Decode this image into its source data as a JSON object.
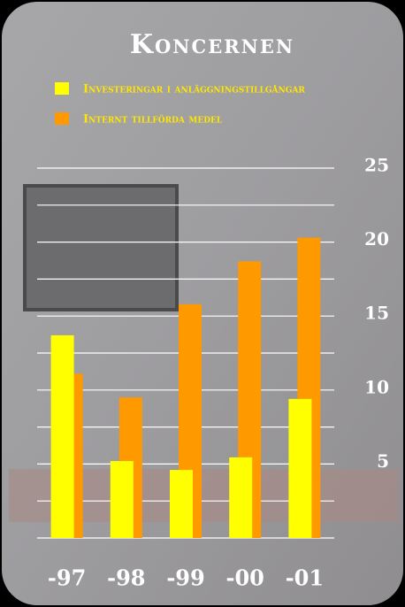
{
  "chart_data": {
    "type": "bar",
    "title": "Koncernen",
    "categories": [
      "-97",
      "-98",
      "-99",
      "-00",
      "-01"
    ],
    "series": [
      {
        "name": "Investeringar i anläggningstillgångar",
        "color": "#ffff00",
        "values": [
          13.7,
          5.2,
          4.6,
          5.45,
          9.4
        ]
      },
      {
        "name": "Internt tillförda medel",
        "color": "#ff9900",
        "values": [
          11.1,
          9.5,
          15.8,
          18.7,
          20.3
        ]
      }
    ],
    "ylim": [
      0,
      25
    ],
    "yticks": [
      5,
      10,
      15,
      20,
      25
    ],
    "minor_yticks": [
      0,
      2.5,
      7.5,
      12.5,
      17.5,
      22.5
    ],
    "grid": true,
    "y_axis_side": "right"
  }
}
